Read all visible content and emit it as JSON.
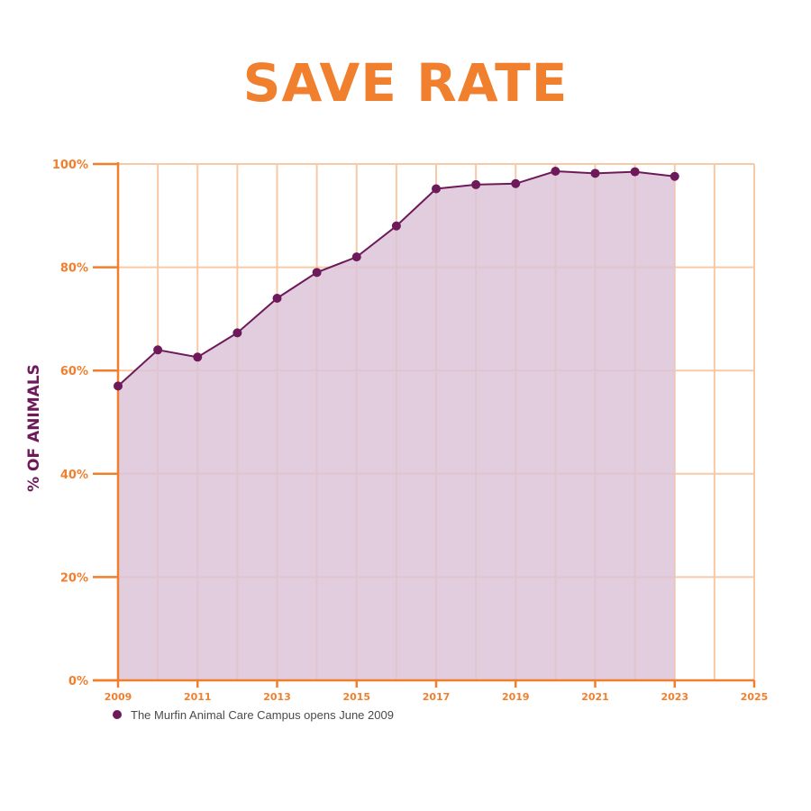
{
  "chart_data": {
    "type": "area",
    "title": "SAVE RATE",
    "xlabel": "",
    "ylabel": "% OF ANIMALS",
    "x": [
      2009,
      2010,
      2011,
      2012,
      2013,
      2014,
      2015,
      2016,
      2017,
      2018,
      2019,
      2020,
      2021,
      2022,
      2023
    ],
    "values": [
      57,
      64,
      62.6,
      67.3,
      74,
      79,
      82,
      88,
      95.2,
      96,
      96.2,
      98.6,
      98.2,
      98.5,
      97.6
    ],
    "xlim": [
      2009,
      2025
    ],
    "ylim": [
      0,
      100
    ],
    "x_ticks": [
      "2009",
      "2011",
      "2013",
      "2015",
      "2017",
      "2019",
      "2021",
      "2023",
      "2025"
    ],
    "y_ticks": [
      "0%",
      "20%",
      "40%",
      "60%",
      "80%",
      "100%"
    ],
    "grid": true,
    "annotation": "The Murfin Animal Care Campus opens June 2009",
    "colors": {
      "title": "#F07F2E",
      "axis": "#F07F2E",
      "grid": "#F7C9A6",
      "line": "#6E1A5A",
      "fill": "#DCC4D7"
    }
  }
}
